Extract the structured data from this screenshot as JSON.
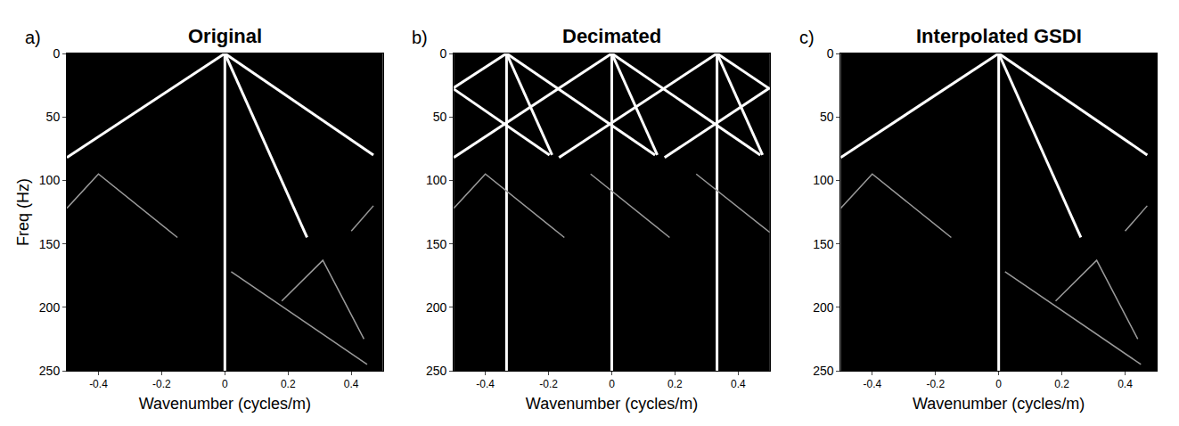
{
  "chart_data": [
    {
      "type": "line",
      "label": "a)",
      "title": "Original",
      "x_label": "Wavenumber (cycles/m)",
      "y_label": "Freq (Hz)",
      "xlim": [
        -0.5,
        0.5
      ],
      "ylim": [
        250,
        0
      ],
      "xticks": [
        -0.4,
        -0.2,
        0,
        0.2,
        0.4
      ],
      "yticks": [
        0,
        50,
        100,
        150,
        200,
        250
      ],
      "grid": false,
      "legend": "none",
      "series": [
        {
          "color": "#ffffff",
          "x": [
            0,
            0
          ],
          "values": [
            0,
            250
          ]
        },
        {
          "color": "#ffffff",
          "x": [
            0,
            -0.5
          ],
          "values": [
            0,
            82
          ]
        },
        {
          "color": "#ffffff",
          "x": [
            0,
            0.47
          ],
          "values": [
            0,
            80
          ]
        },
        {
          "color": "#ffffff",
          "x": [
            0,
            0.26
          ],
          "values": [
            0,
            145
          ]
        },
        {
          "color": "#9a9a9a",
          "x": [
            -0.5,
            -0.4,
            -0.15
          ],
          "values": [
            122,
            95,
            145
          ]
        },
        {
          "color": "#9a9a9a",
          "x": [
            0.02,
            0.45
          ],
          "values": [
            172,
            245
          ]
        },
        {
          "color": "#9a9a9a",
          "x": [
            0.18,
            0.31,
            0.44
          ],
          "values": [
            195,
            163,
            225
          ]
        },
        {
          "color": "#9a9a9a",
          "x": [
            0.4,
            0.47
          ],
          "values": [
            140,
            120
          ]
        }
      ]
    },
    {
      "type": "line",
      "label": "b)",
      "title": "Decimated",
      "x_label": "Wavenumber (cycles/m)",
      "xlim": [
        -0.5,
        0.5
      ],
      "ylim": [
        250,
        0
      ],
      "xticks": [
        -0.4,
        -0.2,
        0,
        0.2,
        0.4
      ],
      "yticks": [
        0,
        50,
        100,
        150,
        200,
        250
      ],
      "grid": false,
      "legend": "none",
      "series": [
        {
          "color": "#ffffff",
          "x": [
            -0.333,
            -0.333
          ],
          "values": [
            0,
            250
          ]
        },
        {
          "color": "#ffffff",
          "x": [
            0,
            0
          ],
          "values": [
            0,
            250
          ]
        },
        {
          "color": "#ffffff",
          "x": [
            0.333,
            0.333
          ],
          "values": [
            0,
            250
          ]
        },
        {
          "color": "#ffffff",
          "x": [
            0,
            -0.5
          ],
          "values": [
            0,
            82
          ]
        },
        {
          "color": "#ffffff",
          "x": [
            0.333,
            -0.167
          ],
          "values": [
            0,
            82
          ]
        },
        {
          "color": "#ffffff",
          "x": [
            0.5,
            0.167
          ],
          "values": [
            27,
            82
          ]
        },
        {
          "color": "#ffffff",
          "x": [
            -0.333,
            -0.5
          ],
          "values": [
            0,
            27
          ]
        },
        {
          "color": "#ffffff",
          "x": [
            0,
            0.47
          ],
          "values": [
            0,
            80
          ]
        },
        {
          "color": "#ffffff",
          "x": [
            -0.333,
            0.137
          ],
          "values": [
            0,
            80
          ]
        },
        {
          "color": "#ffffff",
          "x": [
            -0.5,
            -0.197
          ],
          "values": [
            28,
            80
          ]
        },
        {
          "color": "#ffffff",
          "x": [
            0.333,
            0.5
          ],
          "values": [
            0,
            28
          ]
        },
        {
          "color": "#ffffff",
          "x": [
            0,
            0.144
          ],
          "values": [
            0,
            80
          ]
        },
        {
          "color": "#ffffff",
          "x": [
            -0.333,
            -0.189
          ],
          "values": [
            0,
            80
          ]
        },
        {
          "color": "#ffffff",
          "x": [
            0.333,
            0.477
          ],
          "values": [
            0,
            80
          ]
        },
        {
          "color": "#9a9a9a",
          "x": [
            -0.5,
            -0.4,
            -0.15
          ],
          "values": [
            122,
            95,
            145
          ]
        },
        {
          "color": "#9a9a9a",
          "x": [
            -0.067,
            0.183
          ],
          "values": [
            95,
            145
          ]
        },
        {
          "color": "#9a9a9a",
          "x": [
            0.267,
            0.5
          ],
          "values": [
            95,
            141
          ]
        }
      ]
    },
    {
      "type": "line",
      "label": "c)",
      "title": "Interpolated GSDI",
      "x_label": "Wavenumber (cycles/m)",
      "xlim": [
        -0.5,
        0.5
      ],
      "ylim": [
        250,
        0
      ],
      "xticks": [
        -0.4,
        -0.2,
        0,
        0.2,
        0.4
      ],
      "yticks": [
        0,
        50,
        100,
        150,
        200,
        250
      ],
      "grid": false,
      "legend": "none",
      "series": [
        {
          "color": "#ffffff",
          "x": [
            0,
            0
          ],
          "values": [
            0,
            250
          ]
        },
        {
          "color": "#ffffff",
          "x": [
            0,
            -0.5
          ],
          "values": [
            0,
            82
          ]
        },
        {
          "color": "#ffffff",
          "x": [
            0,
            0.47
          ],
          "values": [
            0,
            80
          ]
        },
        {
          "color": "#ffffff",
          "x": [
            0,
            0.26
          ],
          "values": [
            0,
            145
          ]
        },
        {
          "color": "#9a9a9a",
          "x": [
            -0.5,
            -0.4,
            -0.15
          ],
          "values": [
            122,
            95,
            145
          ]
        },
        {
          "color": "#9a9a9a",
          "x": [
            0.02,
            0.45
          ],
          "values": [
            172,
            245
          ]
        },
        {
          "color": "#9a9a9a",
          "x": [
            0.18,
            0.31,
            0.44
          ],
          "values": [
            195,
            163,
            225
          ]
        },
        {
          "color": "#9a9a9a",
          "x": [
            0.4,
            0.47
          ],
          "values": [
            140,
            120
          ]
        }
      ]
    }
  ]
}
